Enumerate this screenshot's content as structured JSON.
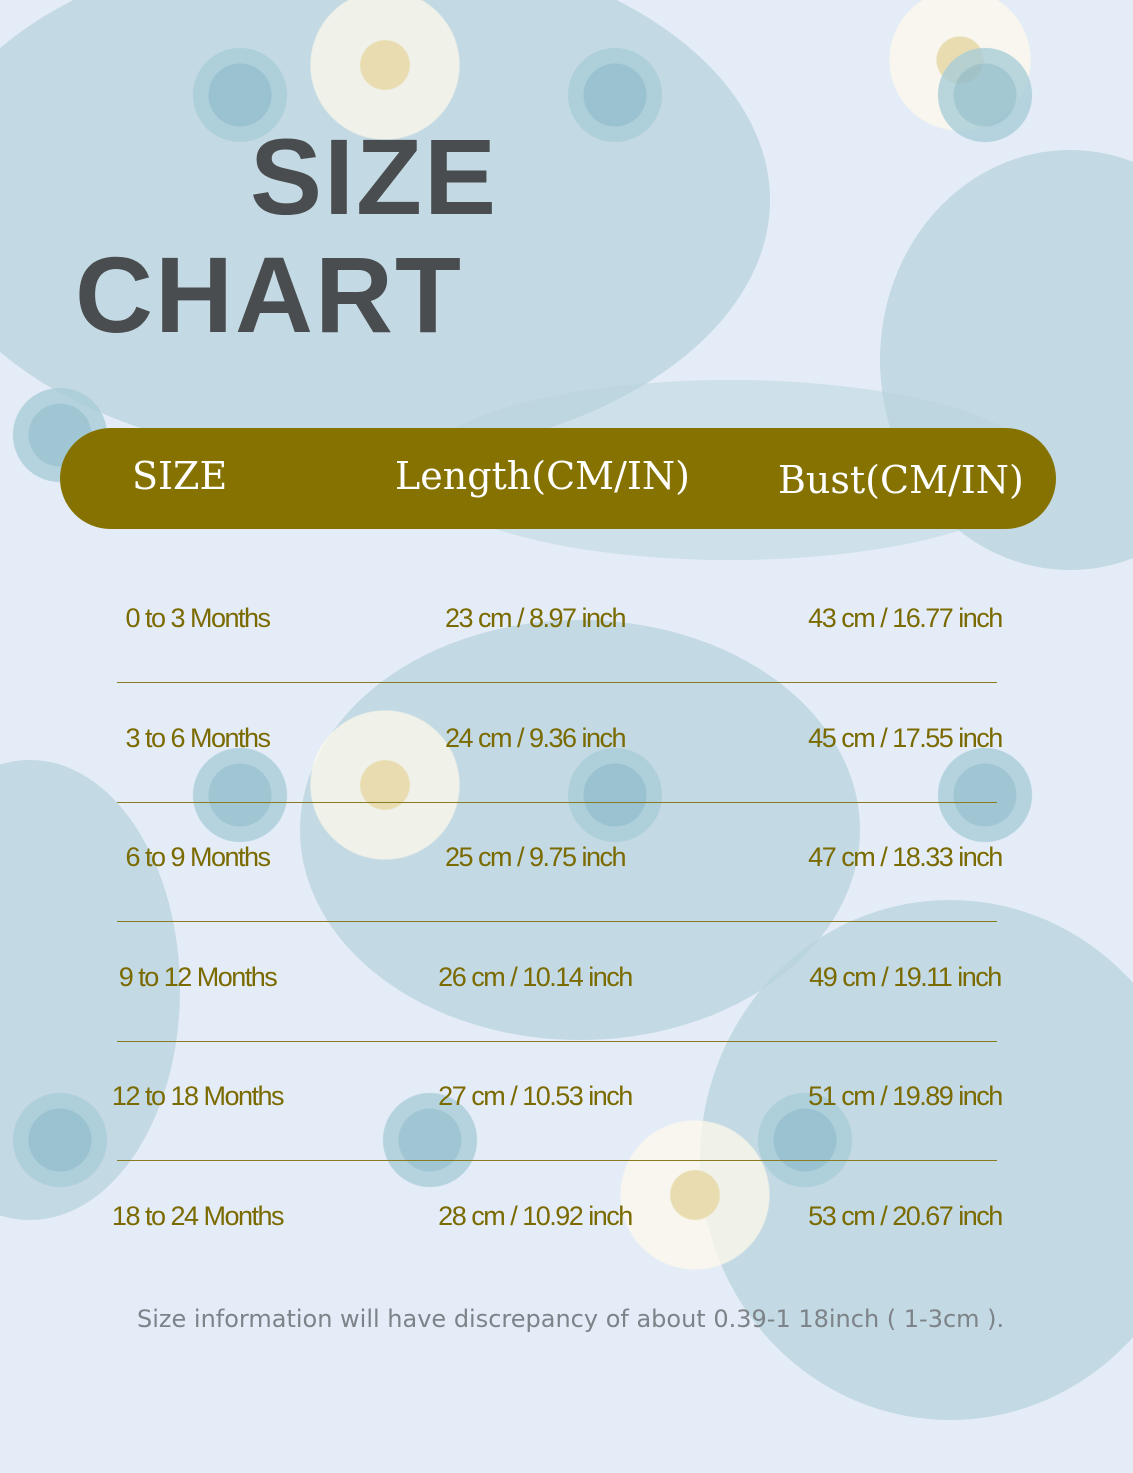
{
  "title": {
    "line1": "SIZE",
    "line2": "CHART"
  },
  "colors": {
    "header_bg": "#857200",
    "text": "#7a6a00",
    "background": "#e4ecf7"
  },
  "table": {
    "headers": [
      "SIZE",
      "Length(CM/IN)",
      "Bust(CM/IN)"
    ],
    "rows": [
      [
        "0 to 3 Months",
        "23 cm / 8.97 inch",
        "43 cm / 16.77 inch"
      ],
      [
        "3 to 6 Months",
        "24 cm / 9.36 inch",
        "45 cm / 17.55 inch"
      ],
      [
        "6 to 9 Months",
        "25 cm / 9.75 inch",
        "47 cm / 18.33 inch"
      ],
      [
        "9 to 12 Months",
        "26 cm / 10.14 inch",
        "49 cm / 19.11 inch"
      ],
      [
        "12 to 18 Months",
        "27 cm / 10.53 inch",
        "51 cm / 19.89 inch"
      ],
      [
        "18 to 24 Months",
        "28 cm / 10.92 inch",
        "53 cm / 20.67 inch"
      ]
    ]
  },
  "note": "Size information will have discrepancy of about 0.39-1 18inch ( 1-3cm )."
}
